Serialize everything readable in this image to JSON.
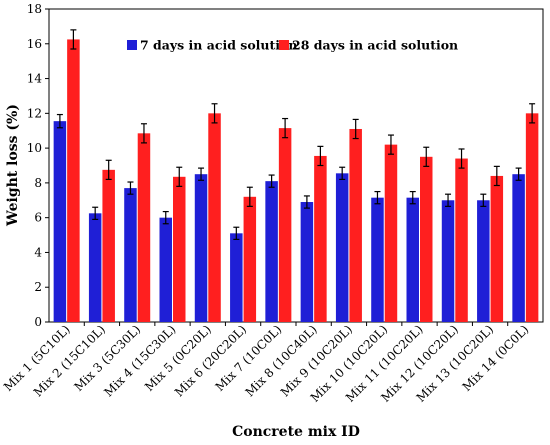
{
  "chart_data": {
    "type": "bar",
    "title": "",
    "xlabel": "Concrete mix ID",
    "ylabel": "Weight loss (%)",
    "ylim": [
      0,
      18
    ],
    "yticks": [
      0,
      2,
      4,
      6,
      8,
      10,
      12,
      14,
      16,
      18
    ],
    "grid": false,
    "legend_position": "top",
    "categories": [
      "Mix 1 (5C10L)",
      "Mix 2 (15C10L)",
      "Mix 3 (5C30L)",
      "Mix 4 (15C30L)",
      "Mix 5 (0C20L)",
      "Mix 6 (20C20L)",
      "Mix 7 (10C0L)",
      "Mix 8 (10C40L)",
      "Mix 9 (10C20L)",
      "Mix 10 (10C20L)",
      "Mix 11 (10C20L)",
      "Mix 12 (10C20L)",
      "Mix 13 (10C20L)",
      "Mix 14 (0C0L)"
    ],
    "series": [
      {
        "name": "7 days in acid solution",
        "color": "#1f1fd6",
        "values": [
          11.55,
          6.25,
          7.7,
          6.0,
          8.5,
          5.1,
          8.1,
          6.9,
          8.55,
          7.15,
          7.15,
          7.0,
          7.0,
          8.5
        ],
        "errors": [
          0.38,
          0.35,
          0.35,
          0.35,
          0.35,
          0.35,
          0.35,
          0.35,
          0.35,
          0.35,
          0.35,
          0.35,
          0.35,
          0.35
        ]
      },
      {
        "name": "28 days in acid solution",
        "color": "#ff1f1f",
        "values": [
          16.25,
          8.75,
          10.85,
          8.35,
          12.0,
          7.2,
          11.15,
          9.55,
          11.1,
          10.2,
          9.5,
          9.4,
          8.4,
          12.0
        ],
        "errors": [
          0.55,
          0.55,
          0.55,
          0.55,
          0.55,
          0.55,
          0.55,
          0.55,
          0.55,
          0.55,
          0.55,
          0.55,
          0.55,
          0.55
        ]
      }
    ]
  }
}
